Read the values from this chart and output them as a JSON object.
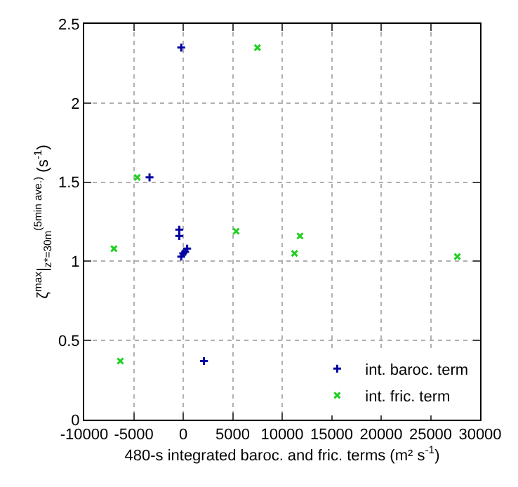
{
  "chart_data": {
    "type": "scatter",
    "xlabel": "480-s integrated baroc. and fric. terms (m² s$^{-1}$)",
    "ylabel": "ζ$^{max}$|$_{z*=30m}$$^{(5min ave.)}$ (s$^{-1}$)",
    "xlim": [
      -10000,
      30000
    ],
    "xticks": [
      -10000,
      -5000,
      0,
      5000,
      10000,
      15000,
      20000,
      25000,
      30000
    ],
    "ylim": [
      0,
      2.5
    ],
    "yticks": [
      0,
      0.5,
      1,
      1.5,
      2,
      2.5
    ],
    "grid": true,
    "legend": "bottom right",
    "series": [
      {
        "name": "int. baroc. term",
        "color": "#0000a0",
        "marker": "cross",
        "x": [
          -200,
          -3400,
          -400,
          -400,
          -200,
          0,
          200,
          400,
          2100
        ],
        "values": [
          2.35,
          1.53,
          1.2,
          1.16,
          1.03,
          1.05,
          1.06,
          1.08,
          0.37
        ]
      },
      {
        "name": "int. fric. term",
        "color": "#20d020",
        "marker": "x",
        "x": [
          7500,
          -4650,
          5350,
          11800,
          -7000,
          11250,
          27700,
          -6350
        ],
        "values": [
          2.35,
          1.53,
          1.19,
          1.16,
          1.08,
          1.05,
          1.03,
          0.37
        ]
      }
    ]
  }
}
